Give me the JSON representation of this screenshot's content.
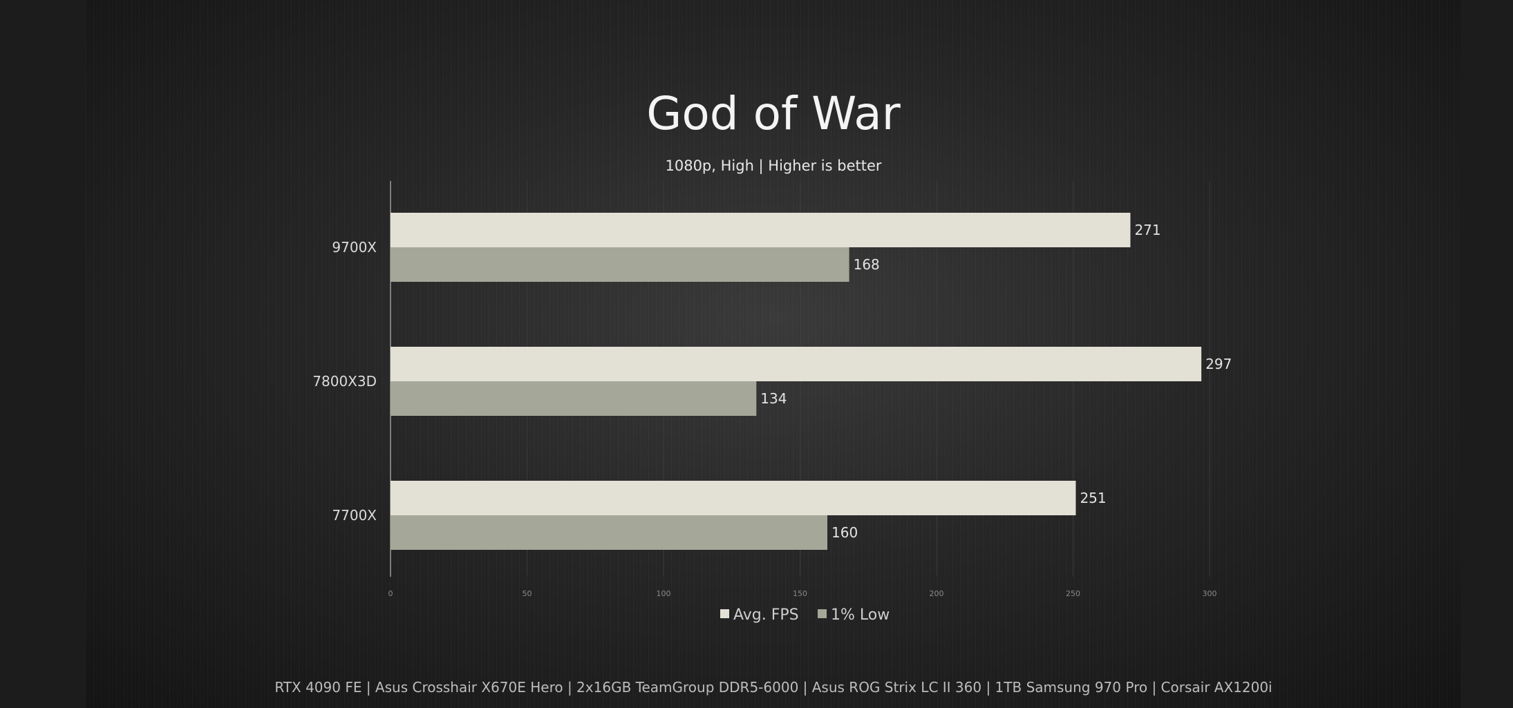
{
  "colors": {
    "avg_fps": "#e3e1d6",
    "low_1pct": "#a5a898",
    "axis": "#9a9a9a",
    "grid": "#3a3a3a"
  },
  "chart_data": {
    "type": "bar",
    "orientation": "horizontal",
    "title": "God of War",
    "subtitle": "1080p, High | Higher is better",
    "categories": [
      "9700X",
      "7800X3D",
      "7700X"
    ],
    "series": [
      {
        "name": "Avg. FPS",
        "values": [
          271,
          297,
          251
        ]
      },
      {
        "name": "1% Low",
        "values": [
          168,
          134,
          160
        ]
      }
    ],
    "xlim": [
      0,
      300
    ],
    "x_ticks": [
      "0",
      "50",
      "100",
      "150",
      "200",
      "250",
      "300"
    ],
    "grid": true,
    "legend": "bottom",
    "footer": "RTX 4090 FE | Asus Crosshair X670E Hero | 2x16GB TeamGroup DDR5-6000 | Asus ROG Strix LC II 360 | 1TB Samsung 970 Pro | Corsair AX1200i"
  }
}
